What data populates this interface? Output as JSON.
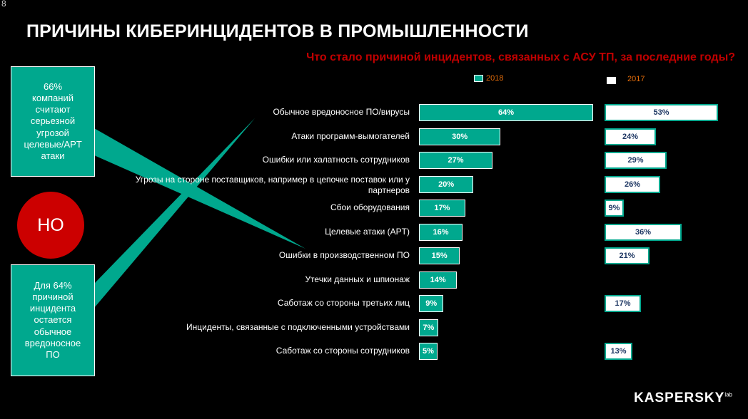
{
  "slide_number": "8",
  "title": "ПРИЧИНЫ КИБЕРИНЦИДЕНТОВ В ПРОМЫШЛЕННОСТИ",
  "colors": {
    "bar_2018": "#00a88e",
    "bar_2017": "#ffffff",
    "accent_red": "#cc0000",
    "question": "#c00000"
  },
  "callouts": {
    "top": "66% компаний считают серьезной угрозой целевые/APT атаки",
    "no": "НО",
    "bottom": "Для 64% причиной инцидента остается обычное вредоносное ПО"
  },
  "logo": {
    "text": "KASPERSKY",
    "suffix": "lab"
  },
  "chart_data": {
    "type": "bar",
    "orientation": "horizontal",
    "title": "Что стало причиной инцидентов, связанных с АСУ ТП, за последние годы?",
    "legend_position": "top",
    "categories": [
      "Обычное вредоносное ПО/вирусы",
      "Атаки программ-вымогателей",
      "Ошибки или халатность сотрудников",
      "Угрозы на стороне поставщиков, например в цепочке поставок или у партнеров",
      "Сбои оборудования",
      "Целевые атаки (APT)",
      "Ошибки в производственном ПО",
      "Утечки данных и шпионаж",
      "Саботаж со стороны третьих лиц",
      "Инциденты, связанные с подключенными устройствами",
      "Саботаж со стороны сотрудников"
    ],
    "series": [
      {
        "name": "2018",
        "values": [
          64,
          30,
          27,
          20,
          17,
          16,
          15,
          14,
          9,
          7,
          5
        ],
        "labels": [
          "64%",
          "30%",
          "27%",
          "20%",
          "17%",
          "16%",
          "15%",
          "14%",
          "9%",
          "7%",
          "5%"
        ]
      },
      {
        "name": "2017",
        "values": [
          53,
          24,
          29,
          26,
          9,
          36,
          21,
          null,
          17,
          null,
          13
        ],
        "labels": [
          "53%",
          "24%",
          "29%",
          "26%",
          "9%",
          "36%",
          "21%",
          "",
          "17%",
          "",
          "13%"
        ]
      }
    ]
  }
}
